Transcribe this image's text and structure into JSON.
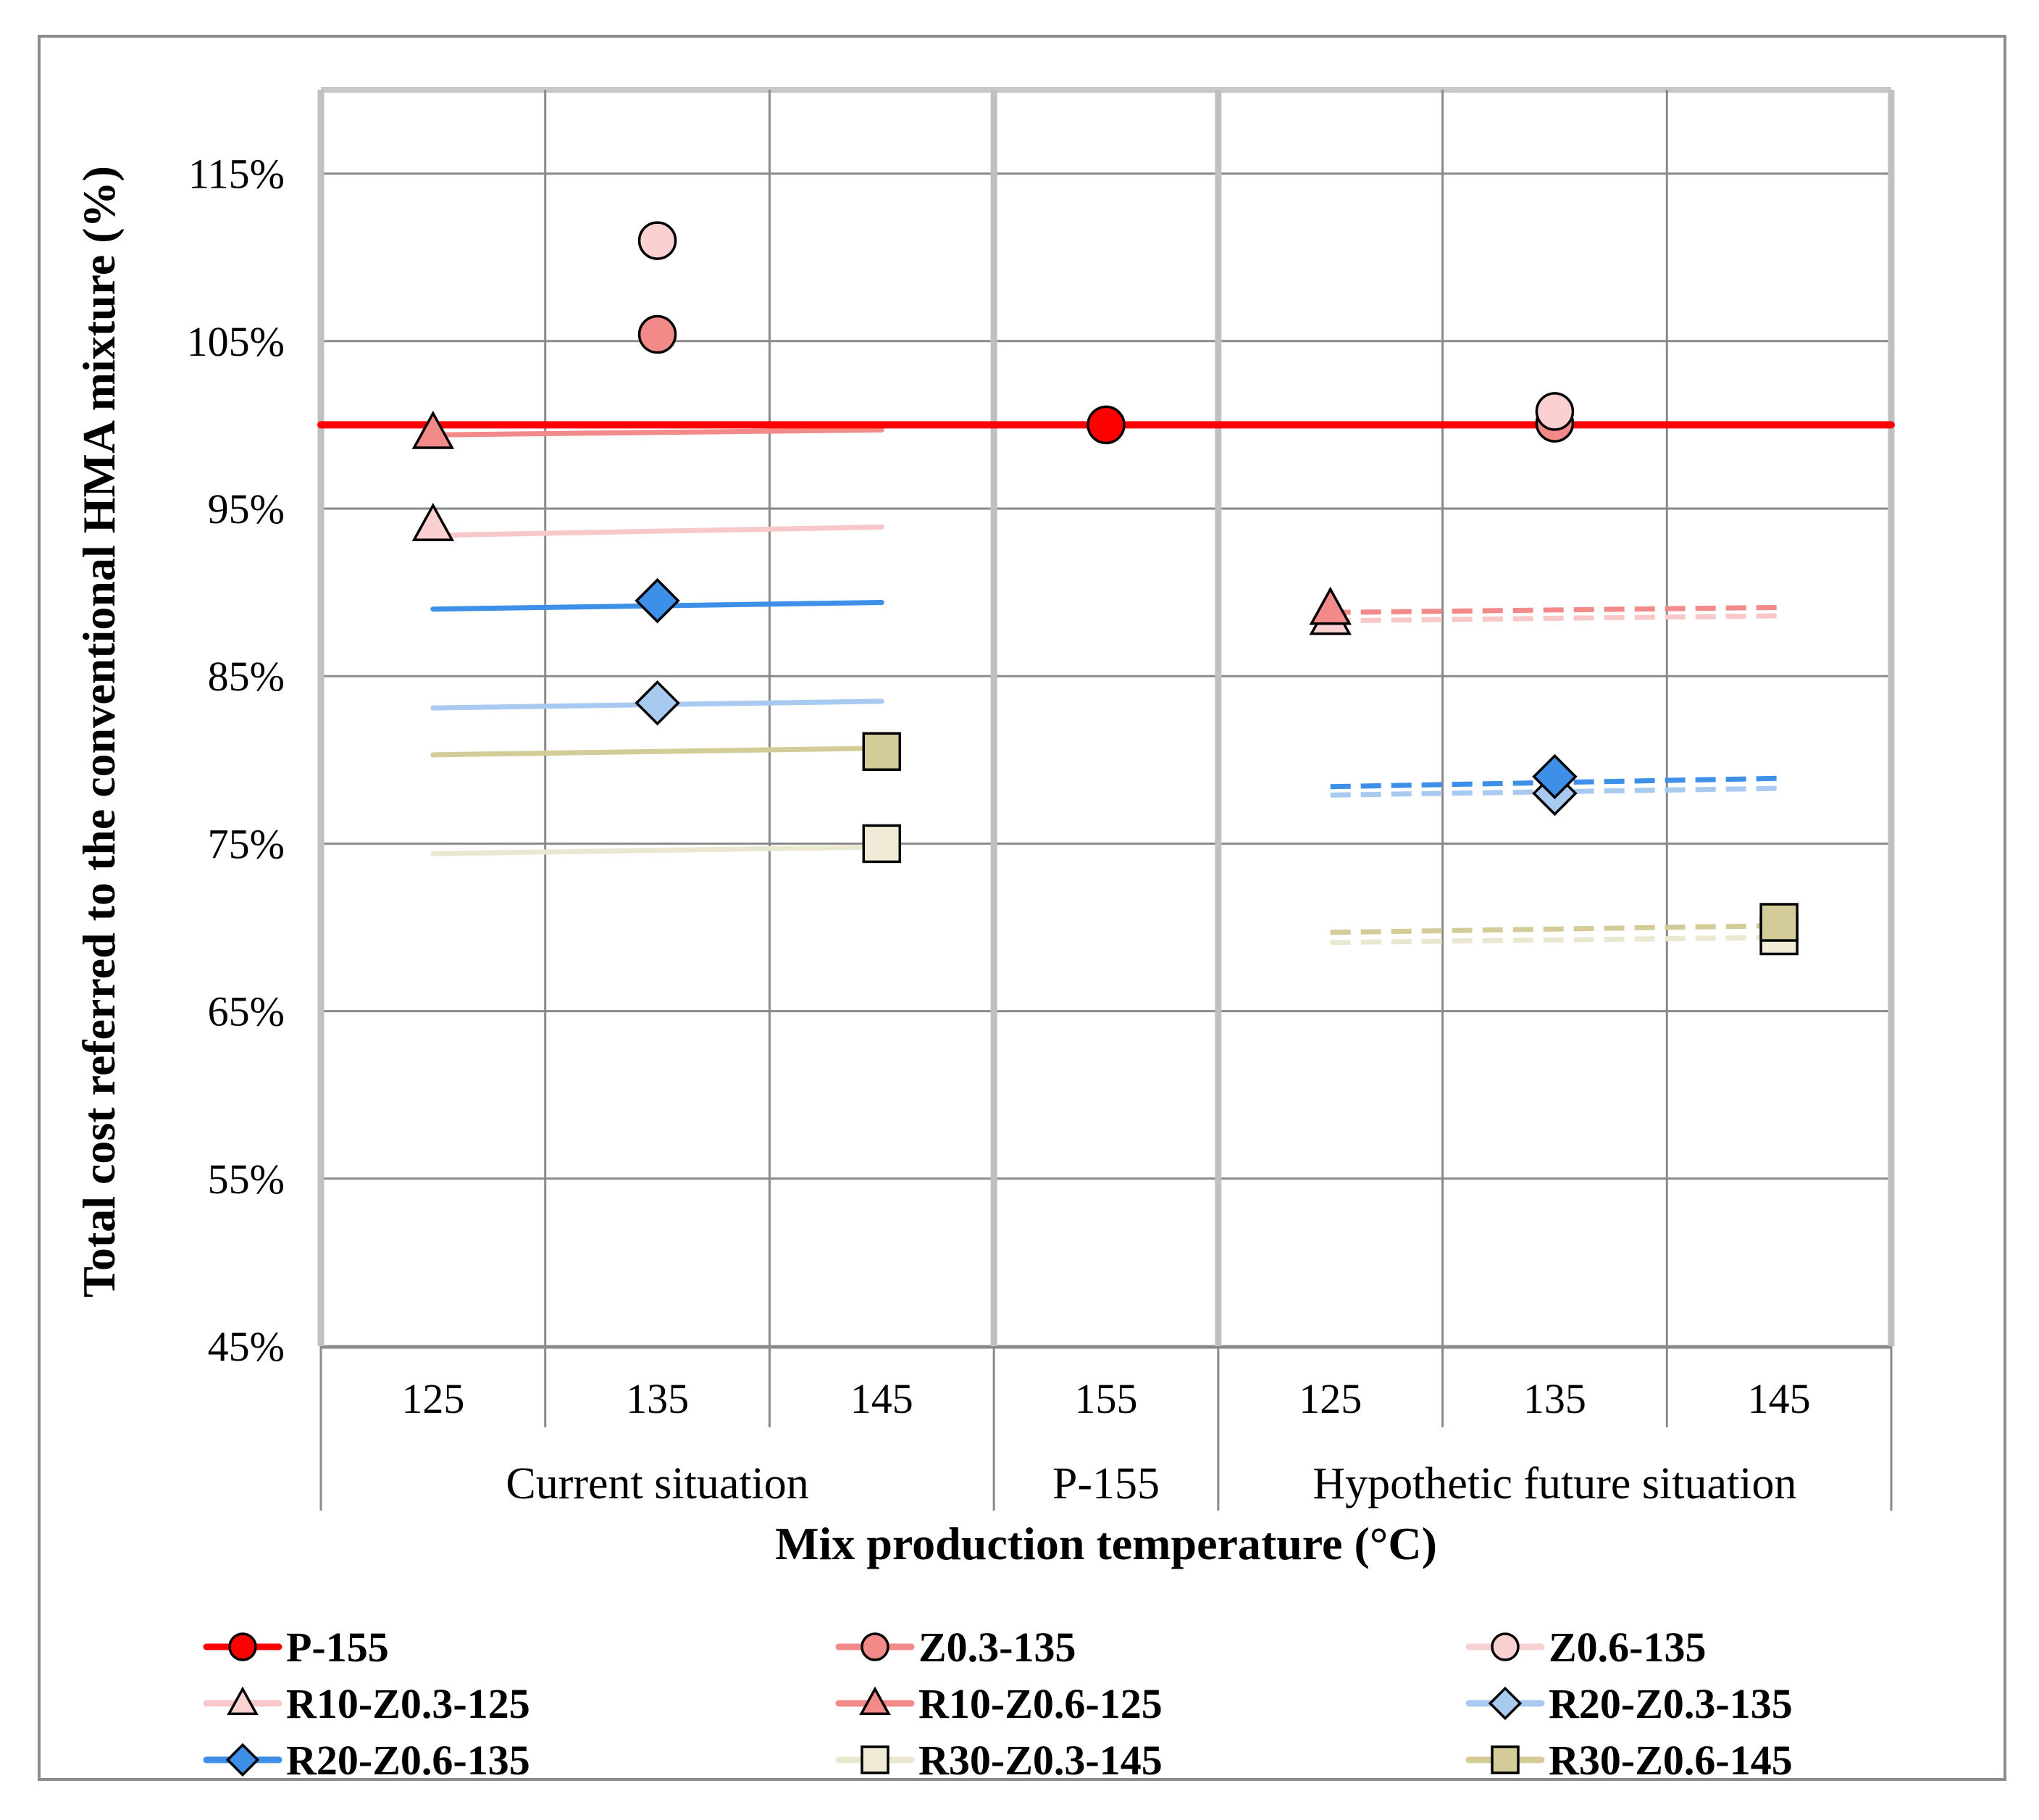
{
  "chart_data": {
    "type": "scatter",
    "xlabel": "Mix production temperature (°C)",
    "ylabel": "Total cost referred to the conventional HMA mixture (%)",
    "ylim": [
      45,
      120
    ],
    "yticks": [
      "45%",
      "55%",
      "65%",
      "75%",
      "85%",
      "95%",
      "105%",
      "115%"
    ],
    "ytick_values": [
      45,
      55,
      65,
      75,
      85,
      95,
      105,
      115
    ],
    "categories": [
      "125",
      "135",
      "145",
      "155",
      "125",
      "135",
      "145"
    ],
    "groups": [
      {
        "label": "Current situation",
        "span": [
          0,
          2
        ]
      },
      {
        "label": "P-155",
        "span": [
          3,
          3
        ]
      },
      {
        "label": "Hypothetic future situation",
        "span": [
          4,
          6
        ]
      }
    ],
    "series": [
      {
        "name": "P-155",
        "color": "#ff0000",
        "marker": "circle",
        "fill": "#ff0000",
        "dashed": false,
        "line": [
          [
            -0.5,
            100
          ],
          [
            6.5,
            100
          ]
        ],
        "points": [
          [
            3,
            100
          ]
        ]
      },
      {
        "name": "Z0.3-135",
        "color": "#f28a8a",
        "marker": "circle",
        "fill": "#f28a8a",
        "dashed": false,
        "line": [
          [
            0,
            99.4
          ],
          [
            2,
            99.7
          ]
        ],
        "points": [
          [
            1,
            105.4
          ],
          [
            5,
            100.1
          ]
        ]
      },
      {
        "name": "Z0.6-135",
        "color": "#f8c8c8",
        "marker": "circle",
        "fill": "#fbd0d0",
        "dashed": false,
        "line": [
          [
            0,
            93.4
          ],
          [
            2,
            93.9
          ]
        ],
        "points": [
          [
            1,
            111
          ],
          [
            5,
            100.8
          ]
        ]
      },
      {
        "name": "R10-Z0.3-125",
        "color": "#f8c8c8",
        "marker": "triangle",
        "fill": "#fbd0d0",
        "dashed": true,
        "line": [
          [
            4,
            88.3
          ],
          [
            6,
            88.6
          ]
        ],
        "points": [
          [
            0,
            94.0
          ],
          [
            4,
            88.4
          ]
        ]
      },
      {
        "name": "R10-Z0.6-125",
        "color": "#f28a8a",
        "marker": "triangle",
        "fill": "#f28a8a",
        "dashed": true,
        "line": [
          [
            4,
            88.8
          ],
          [
            6,
            89.1
          ]
        ],
        "points": [
          [
            0,
            99.5
          ],
          [
            4,
            89.0
          ]
        ]
      },
      {
        "name": "R20-Z0.3-135",
        "color": "#a8caf0",
        "marker": "diamond",
        "fill": "#a8caf0",
        "dashed": false,
        "line": [
          [
            0,
            83.1
          ],
          [
            2,
            83.5
          ]
        ],
        "points": [
          [
            1,
            83.4
          ]
        ]
      },
      {
        "name": "R20-Z0.6-135",
        "color": "#3d8fe8",
        "marker": "diamond",
        "fill": "#3d8fe8",
        "dashed": false,
        "line": [
          [
            0,
            89.0
          ],
          [
            2,
            89.4
          ]
        ],
        "points": [
          [
            1,
            89.5
          ]
        ]
      },
      {
        "name": "R30-Z0.3-145",
        "color": "#ebe8d2",
        "marker": "square",
        "fill": "#efebd6",
        "dashed": false,
        "line": [
          [
            0,
            74.4
          ],
          [
            2,
            74.8
          ]
        ],
        "points": [
          [
            2,
            75.0
          ]
        ]
      },
      {
        "name": "R30-Z0.6-145",
        "color": "#d3cc98",
        "marker": "square",
        "fill": "#d3cc98",
        "dashed": false,
        "line": [
          [
            0,
            80.3
          ],
          [
            2,
            80.7
          ]
        ],
        "points": [
          [
            2,
            80.5
          ]
        ]
      },
      {
        "name": "R20-Z0.3-135 (future)",
        "color": "#a8caf0",
        "marker": "diamond",
        "fill": "#a8caf0",
        "dashed": true,
        "line": [
          [
            4,
            77.9
          ],
          [
            6,
            78.3
          ]
        ],
        "points": [
          [
            5,
            78.0
          ]
        ]
      },
      {
        "name": "R20-Z0.6-135 (future)",
        "color": "#3d8fe8",
        "marker": "diamond",
        "fill": "#3d8fe8",
        "dashed": true,
        "line": [
          [
            4,
            78.4
          ],
          [
            6,
            78.9
          ]
        ],
        "points": [
          [
            5,
            79.0
          ]
        ]
      },
      {
        "name": "R30-Z0.3-145 (future)",
        "color": "#ebe8d2",
        "marker": "square",
        "fill": "#efebd6",
        "dashed": true,
        "line": [
          [
            4,
            69.1
          ],
          [
            6,
            69.4
          ]
        ],
        "points": [
          [
            6,
            69.5
          ]
        ]
      },
      {
        "name": "R30-Z0.6-145 (future)",
        "color": "#d3cc98",
        "marker": "square",
        "fill": "#d3cc98",
        "dashed": true,
        "line": [
          [
            4,
            69.7
          ],
          [
            6,
            70.1
          ]
        ],
        "points": [
          [
            6,
            70.3
          ]
        ]
      }
    ],
    "legend": [
      {
        "label": "P-155",
        "color": "#ff0000",
        "marker": "circle",
        "fill": "#ff0000"
      },
      {
        "label": "Z0.3-135",
        "color": "#f28a8a",
        "marker": "circle",
        "fill": "#f28a8a"
      },
      {
        "label": "Z0.6-135",
        "color": "#f8d2d2",
        "marker": "circle",
        "fill": "#fbd0d0"
      },
      {
        "label": "R10-Z0.3-125",
        "color": "#f8c8c8",
        "marker": "triangle",
        "fill": "#fbd0d0"
      },
      {
        "label": "R10-Z0.6-125",
        "color": "#f28a8a",
        "marker": "triangle",
        "fill": "#f28a8a"
      },
      {
        "label": "R20-Z0.3-135",
        "color": "#a8caf0",
        "marker": "diamond",
        "fill": "#a8caf0"
      },
      {
        "label": "R20-Z0.6-135",
        "color": "#3d8fe8",
        "marker": "diamond",
        "fill": "#3d8fe8"
      },
      {
        "label": "R30-Z0.3-145",
        "color": "#ebe8d2",
        "marker": "square",
        "fill": "#efebd6"
      },
      {
        "label": "R30-Z0.6-145",
        "color": "#d3cc98",
        "marker": "square",
        "fill": "#d3cc98"
      }
    ]
  }
}
